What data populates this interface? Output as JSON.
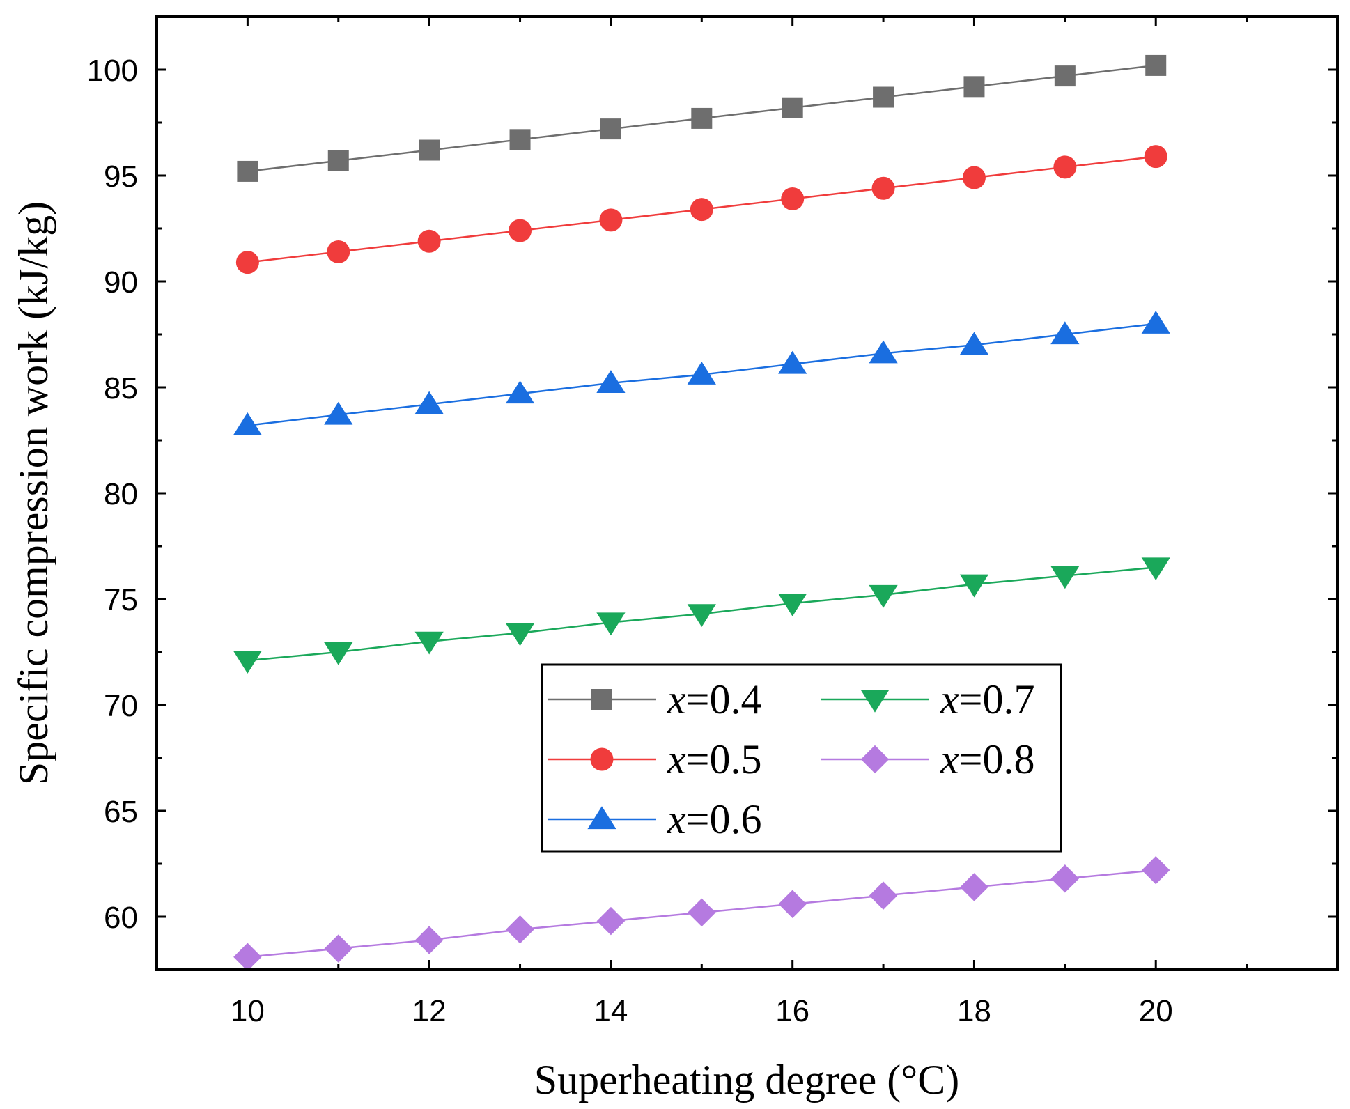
{
  "chart_data": {
    "type": "line",
    "title": "",
    "xlabel": "Superheating degree (°C)",
    "ylabel": "Specific compression work (kJ/kg)",
    "xlim": [
      9,
      22
    ],
    "ylim": [
      57.5,
      102.5
    ],
    "xticks": [
      10,
      12,
      14,
      16,
      18,
      20
    ],
    "yticks": [
      60,
      65,
      70,
      75,
      80,
      85,
      90,
      95,
      100
    ],
    "legend_position": "lower-center",
    "x": [
      10,
      11,
      12,
      13,
      14,
      15,
      16,
      17,
      18,
      19,
      20
    ],
    "series": [
      {
        "name": "x=0.4",
        "var": "x",
        "val": "=0.4",
        "marker": "square",
        "color": "#6e6e6e",
        "values": [
          95.2,
          95.7,
          96.2,
          96.7,
          97.2,
          97.7,
          98.2,
          98.7,
          99.2,
          99.7,
          100.2
        ]
      },
      {
        "name": "x=0.5",
        "var": "x",
        "val": "=0.5",
        "marker": "circle",
        "color": "#f03c3c",
        "values": [
          90.9,
          91.4,
          91.9,
          92.4,
          92.9,
          93.4,
          93.9,
          94.4,
          94.9,
          95.4,
          95.9
        ]
      },
      {
        "name": "x=0.6",
        "var": "x",
        "val": "=0.6",
        "marker": "triangle-up",
        "color": "#1a6ee0",
        "values": [
          83.2,
          83.7,
          84.2,
          84.7,
          85.2,
          85.6,
          86.1,
          86.6,
          87.0,
          87.5,
          88.0
        ]
      },
      {
        "name": "x=0.7",
        "var": "x",
        "val": "=0.7",
        "marker": "triangle-down",
        "color": "#1aa85a",
        "values": [
          72.1,
          72.5,
          73.0,
          73.4,
          73.9,
          74.3,
          74.8,
          75.2,
          75.7,
          76.1,
          76.5
        ]
      },
      {
        "name": "x=0.8",
        "var": "x",
        "val": "=0.8",
        "marker": "diamond",
        "color": "#b57ae0",
        "values": [
          58.1,
          58.5,
          58.9,
          59.4,
          59.8,
          60.2,
          60.6,
          61.0,
          61.4,
          61.8,
          62.2
        ]
      }
    ]
  }
}
